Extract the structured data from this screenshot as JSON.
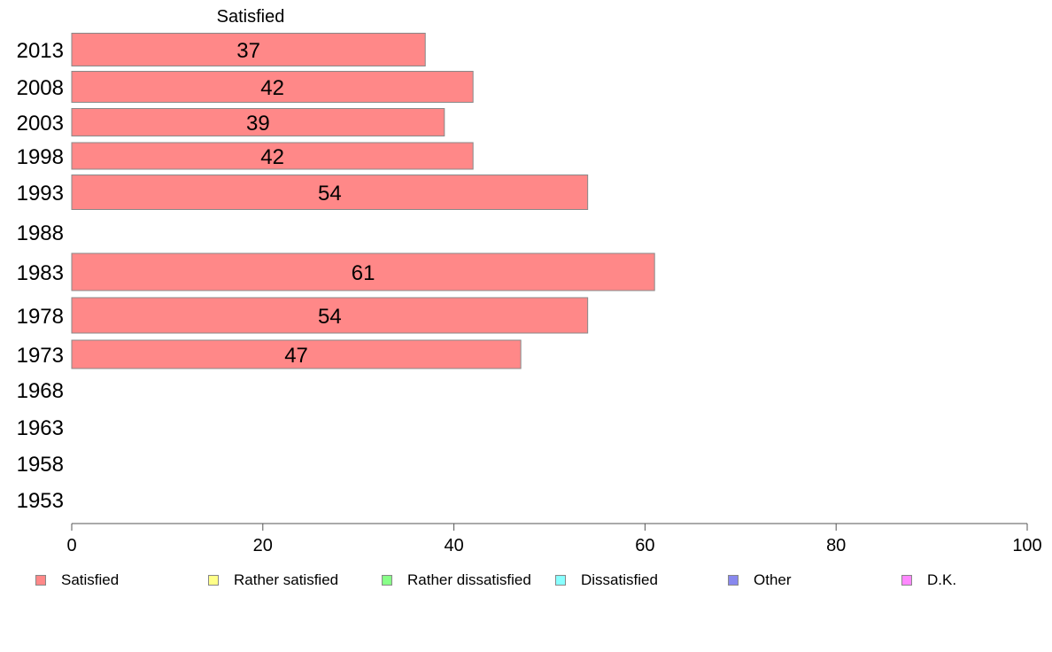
{
  "chart_data": {
    "type": "bar",
    "orientation": "horizontal",
    "categories": [
      "2013",
      "2008",
      "2003",
      "1998",
      "1993",
      "1988",
      "1983",
      "1978",
      "1973",
      "1968",
      "1963",
      "1958",
      "1953"
    ],
    "series": [
      {
        "name": "Satisfied",
        "values": [
          37,
          42,
          39,
          42,
          54,
          null,
          61,
          54,
          47,
          null,
          null,
          null,
          null
        ],
        "color": "#ff8888"
      }
    ],
    "data_labels": [
      "37",
      "42",
      "39",
      "42",
      "54",
      "",
      "61",
      "54",
      "47",
      "",
      "",
      "",
      ""
    ],
    "column_header": "Satisfied",
    "xlim": [
      0,
      100
    ],
    "x_ticks": [
      "0",
      "20",
      "40",
      "60",
      "80",
      "100"
    ],
    "grid": false,
    "legend_position": "bottom"
  },
  "legend": {
    "items": [
      {
        "label": "Satisfied",
        "color": "#ff8888"
      },
      {
        "label": "Rather satisfied",
        "color": "#ffff88"
      },
      {
        "label": "Rather dissatisfied",
        "color": "#88ff88"
      },
      {
        "label": "Dissatisfied",
        "color": "#88ffff"
      },
      {
        "label": "Other",
        "color": "#8888ee"
      },
      {
        "label": "D.K.",
        "color": "#ff88ff"
      }
    ]
  }
}
